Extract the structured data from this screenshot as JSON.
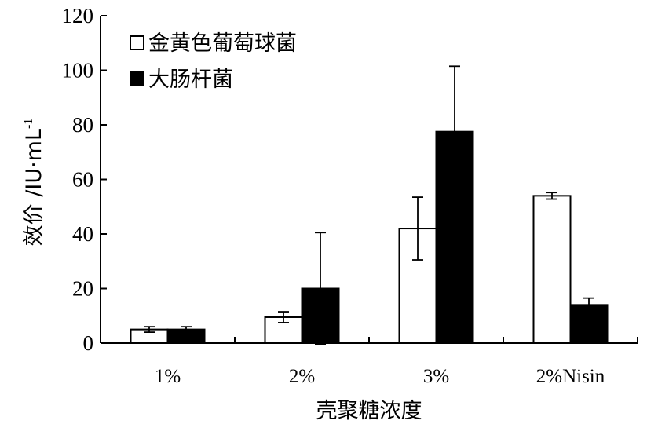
{
  "chart_data": {
    "type": "bar",
    "categories": [
      "1%",
      "2%",
      "3%",
      "2%Nisin"
    ],
    "series": [
      {
        "name": "金黄色葡萄球菌",
        "color": "#ffffff",
        "values": [
          5,
          9.5,
          42,
          54
        ],
        "errors": [
          1,
          2,
          11.5,
          1.2
        ]
      },
      {
        "name": "大肠杆菌",
        "color": "#000000",
        "values": [
          5,
          20,
          77.5,
          14
        ],
        "errors": [
          1,
          20.5,
          24,
          2.5
        ]
      }
    ],
    "xlabel": "壳聚糖浓度",
    "ylabel": "效价 /IU·mL",
    "ylabel_superscript": "-1",
    "ylim": [
      0,
      120
    ],
    "yticks": [
      "0",
      "20",
      "40",
      "60",
      "80",
      "100",
      "120"
    ],
    "grid": false,
    "legend_position": "top-left"
  }
}
